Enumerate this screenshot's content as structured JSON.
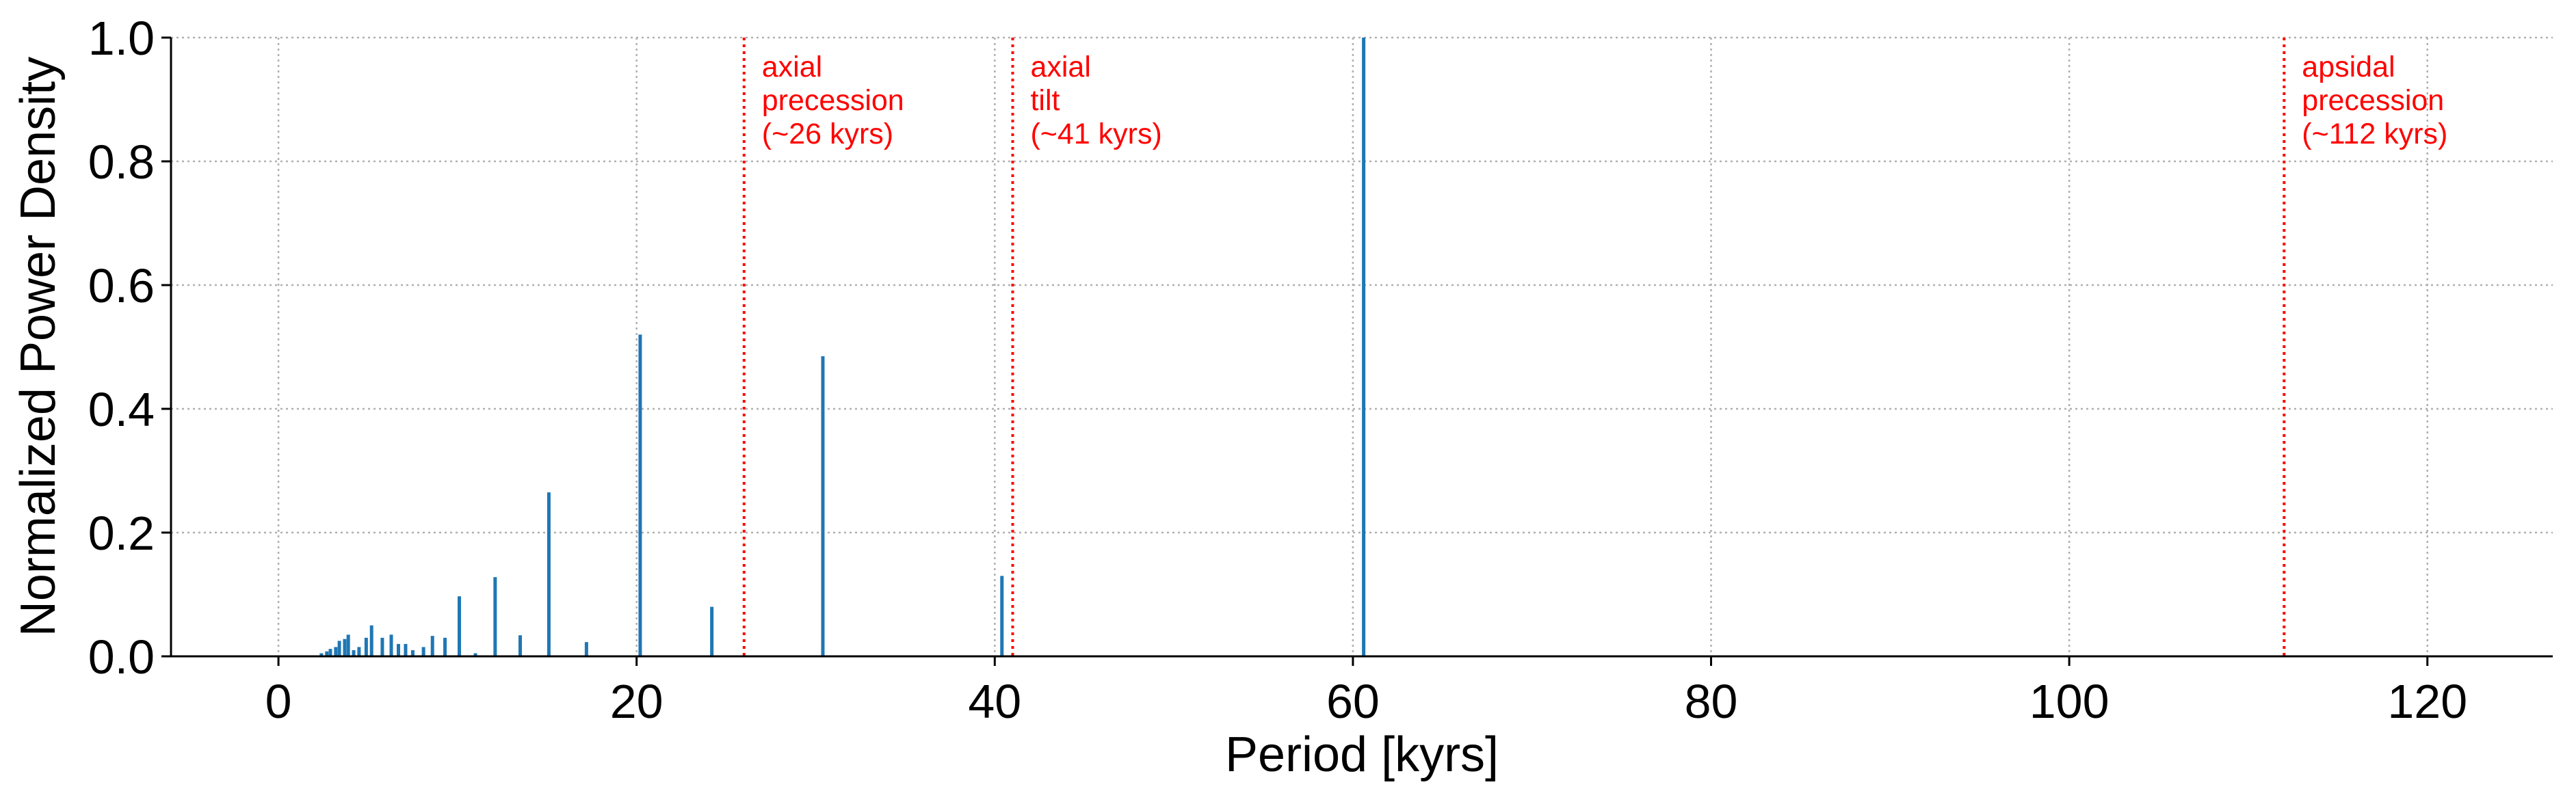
{
  "chart_data": {
    "type": "bar",
    "xlabel": "Period [kyrs]",
    "ylabel": "Normalized Power Density",
    "x": [
      2.4,
      2.7,
      2.9,
      3.2,
      3.4,
      3.7,
      3.9,
      4.2,
      4.5,
      4.9,
      5.2,
      5.8,
      6.3,
      6.7,
      7.1,
      7.5,
      8.1,
      8.6,
      9.3,
      10.1,
      11.0,
      12.1,
      13.5,
      15.1,
      17.2,
      20.2,
      24.2,
      30.4,
      40.4,
      60.6
    ],
    "values": [
      0.005,
      0.008,
      0.012,
      0.015,
      0.025,
      0.028,
      0.035,
      0.01,
      0.015,
      0.03,
      0.05,
      0.03,
      0.035,
      0.02,
      0.02,
      0.01,
      0.015,
      0.033,
      0.03,
      0.097,
      0.005,
      0.128,
      0.034,
      0.265,
      0.023,
      0.52,
      0.08,
      0.485,
      0.13,
      1.0
    ],
    "color": "#1f77b4",
    "xlim": [
      -6,
      127
    ],
    "ylim": [
      0,
      1.0
    ],
    "xticks": [
      0,
      20,
      40,
      60,
      80,
      100,
      120
    ],
    "yticks": [
      {
        "value": 0,
        "label": "0.0"
      },
      0.2,
      0.4,
      0.6,
      0.8,
      {
        "value": 1.0,
        "label": "1.0"
      }
    ],
    "grid": true,
    "vlines": [
      {
        "x": 26,
        "color": "#ff0000",
        "label": [
          "axial",
          "precession",
          "(~26 kyrs)"
        ]
      },
      {
        "x": 41,
        "color": "#ff0000",
        "label": [
          "axial",
          "tilt",
          "(~41 kyrs)"
        ]
      },
      {
        "x": 112,
        "color": "#ff0000",
        "label": [
          "apsidal",
          "precession",
          "(~112 kyrs)"
        ]
      }
    ]
  }
}
